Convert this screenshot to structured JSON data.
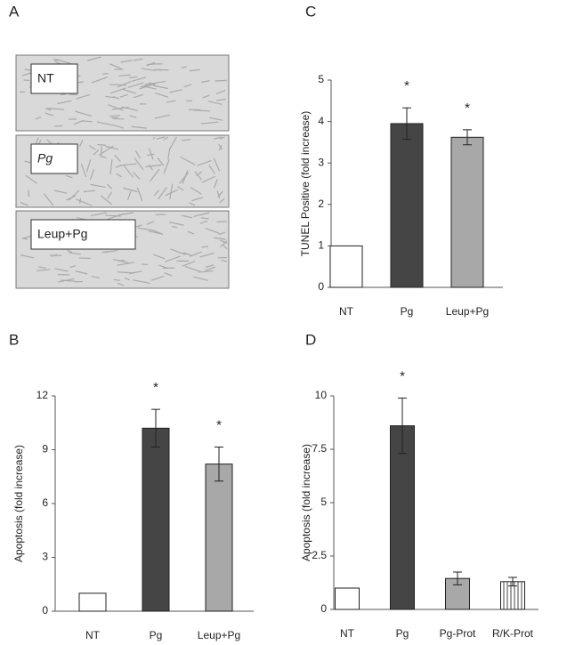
{
  "panel_a": {
    "panel": "A",
    "images": [
      "NT",
      "Pg",
      "Leup+Pg"
    ]
  },
  "chart_data": [
    {
      "type": "bar",
      "panel": "B",
      "ylabel": "Apoptosis (fold increase)",
      "categories": [
        "NT",
        "Pg",
        "Leup+Pg"
      ],
      "values": [
        1,
        10.2,
        8.2
      ],
      "errors": [
        null,
        1.05,
        0.95
      ],
      "annotations": [
        null,
        "*",
        "*"
      ],
      "colors": [
        "#ffffff",
        "#454545",
        "#a8a8a8"
      ],
      "ylim": [
        0,
        12
      ],
      "yticks": [
        0,
        3,
        6,
        9,
        12
      ]
    },
    {
      "type": "bar",
      "panel": "C",
      "ylabel": "TUNEL Positive (fold increase)",
      "categories": [
        "NT",
        "Pg",
        "Leup+Pg"
      ],
      "values": [
        1,
        3.95,
        3.62
      ],
      "errors": [
        null,
        0.38,
        0.18
      ],
      "annotations": [
        null,
        "*",
        "*"
      ],
      "colors": [
        "#ffffff",
        "#454545",
        "#a8a8a8"
      ],
      "ylim": [
        0,
        5
      ],
      "yticks": [
        0,
        1,
        2,
        3,
        4,
        5
      ]
    },
    {
      "type": "bar",
      "panel": "D",
      "ylabel": "Apoptosis (fold increase)",
      "categories": [
        "NT",
        "Pg",
        "Pg-Prot",
        "R/K-Prot"
      ],
      "values": [
        1,
        8.6,
        1.45,
        1.3
      ],
      "errors": [
        null,
        1.3,
        0.3,
        0.2
      ],
      "annotations": [
        null,
        "*",
        null,
        null
      ],
      "colors": [
        "#ffffff",
        "#454545",
        "#a8a8a8",
        "#ffffff"
      ],
      "hatch": [
        false,
        false,
        false,
        true
      ],
      "ylim": [
        0,
        10
      ],
      "yticks": [
        0,
        2.5,
        5,
        7.5,
        10
      ]
    }
  ]
}
